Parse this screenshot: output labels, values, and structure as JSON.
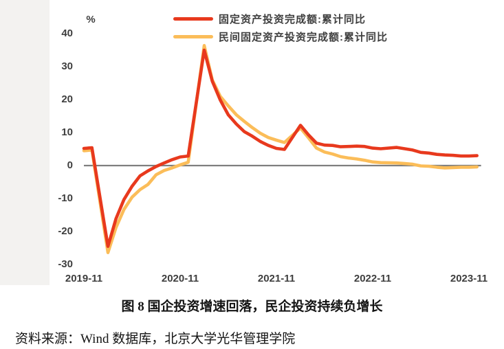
{
  "figure": {
    "caption": "图 8 国企投资增速回落，民企投资持续负增长",
    "source": "资料来源：Wind 数据库，北京大学光华管理学院"
  },
  "chart": {
    "unit_label": "%",
    "colors": {
      "series1": "#e8391d",
      "series2": "#fbbd59",
      "zero_line": "#7f7f7f",
      "tick_text": "#3e3e3e"
    },
    "legend": [
      {
        "label": "固定资产投资完成额:累计同比",
        "color": "#e8391d"
      },
      {
        "label": "民间固定资产投资完成额:累计同比",
        "color": "#fbbd59"
      }
    ]
  },
  "chart_data": {
    "type": "line",
    "title": "图 8 国企投资增速回落，民企投资持续负增长",
    "xlabel": "",
    "ylabel": "%",
    "ylim": [
      -30,
      40
    ],
    "y_ticks": [
      40,
      30,
      20,
      10,
      0,
      -10,
      -20,
      -30
    ],
    "x_tick_labels": [
      "2019-11",
      "2020-11",
      "2021-11",
      "2022-11",
      "2023-11"
    ],
    "grid": false,
    "legend_position": "top",
    "zero_line": true,
    "x": [
      "2019-11",
      "2019-12",
      "2020-02",
      "2020-03",
      "2020-04",
      "2020-05",
      "2020-06",
      "2020-07",
      "2020-08",
      "2020-09",
      "2020-10",
      "2020-11",
      "2020-12",
      "2021-02",
      "2021-03",
      "2021-04",
      "2021-05",
      "2021-06",
      "2021-07",
      "2021-08",
      "2021-09",
      "2021-10",
      "2021-11",
      "2021-12",
      "2022-02",
      "2022-03",
      "2022-04",
      "2022-05",
      "2022-06",
      "2022-07",
      "2022-08",
      "2022-09",
      "2022-10",
      "2022-11",
      "2022-12",
      "2023-02",
      "2023-03",
      "2023-04",
      "2023-05",
      "2023-06",
      "2023-07",
      "2023-08",
      "2023-09",
      "2023-10",
      "2023-11",
      "2023-12"
    ],
    "series": [
      {
        "name": "固定资产投资完成额:累计同比",
        "color": "#e8391d",
        "values": [
          5.2,
          5.4,
          -24.5,
          -16.1,
          -10.3,
          -6.3,
          -3.1,
          -1.6,
          -0.3,
          0.8,
          1.8,
          2.6,
          2.9,
          35.0,
          25.6,
          19.9,
          15.4,
          12.6,
          10.3,
          8.9,
          7.3,
          6.1,
          5.2,
          4.9,
          12.2,
          9.3,
          6.8,
          6.2,
          6.1,
          5.7,
          5.8,
          5.9,
          5.8,
          5.3,
          5.1,
          5.5,
          5.1,
          4.7,
          4.0,
          3.8,
          3.4,
          3.2,
          3.1,
          2.9,
          2.9,
          3.0
        ]
      },
      {
        "name": "民间固定资产投资完成额:累计同比",
        "color": "#fbbd59",
        "values": [
          4.5,
          4.7,
          -26.4,
          -18.8,
          -13.3,
          -9.6,
          -7.3,
          -5.7,
          -2.8,
          -1.5,
          -0.7,
          0.2,
          1.0,
          36.4,
          26.0,
          21.0,
          18.1,
          15.4,
          13.4,
          11.5,
          9.8,
          8.5,
          7.7,
          7.0,
          11.4,
          8.4,
          5.3,
          4.1,
          3.5,
          2.7,
          2.3,
          2.0,
          1.6,
          1.1,
          0.9,
          0.8,
          0.6,
          0.4,
          -0.1,
          -0.2,
          -0.5,
          -0.7,
          -0.6,
          -0.5,
          -0.5,
          -0.4
        ]
      }
    ]
  }
}
